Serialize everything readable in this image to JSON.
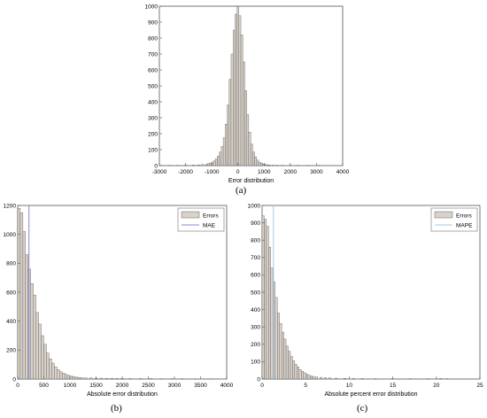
{
  "captions": {
    "a": "(a)",
    "b": "(b)",
    "c": "(c)"
  },
  "colors": {
    "bar_fill": "#d9d2c9",
    "bar_stroke": "#4a4a4a",
    "mae_line": "#8a86d8",
    "mape_line": "#a8c8e8",
    "frame": "#555555"
  },
  "chart_data": [
    {
      "id": "a",
      "type": "bar",
      "title": "",
      "xlabel": "Error distribution",
      "ylabel": "",
      "xlim": [
        -3000,
        4000
      ],
      "ylim": [
        0,
        1000
      ],
      "xticks": [
        -3000,
        -2000,
        -1000,
        0,
        1000,
        2000,
        3000,
        4000
      ],
      "yticks": [
        0,
        100,
        200,
        300,
        400,
        500,
        600,
        700,
        800,
        900,
        1000
      ],
      "grid": false,
      "legend": null,
      "bin_width": 75,
      "x": [
        -2600,
        -2300,
        -2000,
        -1700,
        -1500,
        -1350,
        -1200,
        -1125,
        -1050,
        -975,
        -900,
        -825,
        -750,
        -675,
        -600,
        -525,
        -450,
        -375,
        -300,
        -225,
        -150,
        -75,
        0,
        75,
        150,
        225,
        300,
        375,
        450,
        525,
        600,
        675,
        750,
        825,
        900,
        975,
        1050,
        1125,
        1200,
        1350,
        1500,
        1700,
        2000,
        2300,
        2700,
        3100
      ],
      "values": [
        2,
        2,
        3,
        4,
        5,
        7,
        9,
        12,
        16,
        22,
        30,
        42,
        60,
        85,
        120,
        175,
        260,
        380,
        540,
        700,
        850,
        950,
        1000,
        940,
        820,
        650,
        470,
        320,
        210,
        135,
        85,
        55,
        35,
        22,
        15,
        10,
        7,
        5,
        4,
        3,
        2,
        2,
        2,
        1,
        1,
        1
      ]
    },
    {
      "id": "b",
      "type": "bar",
      "title": "",
      "xlabel": "Absolute error distribution",
      "ylabel": "",
      "xlim": [
        0,
        4000
      ],
      "ylim": [
        0,
        1200
      ],
      "xticks": [
        0,
        500,
        1000,
        1500,
        2000,
        2500,
        3000,
        3500,
        4000
      ],
      "yticks": [
        0,
        200,
        400,
        600,
        800,
        1000,
        1200
      ],
      "grid": false,
      "legend": {
        "position": "top-right",
        "entries": [
          "Errors",
          "MAE"
        ]
      },
      "bin_width": 50,
      "x": [
        25,
        75,
        125,
        175,
        225,
        275,
        325,
        375,
        425,
        475,
        525,
        575,
        625,
        675,
        725,
        775,
        825,
        875,
        925,
        975,
        1025,
        1075,
        1125,
        1175,
        1225,
        1300,
        1400,
        1500,
        1600,
        1700,
        1800,
        1900,
        2000,
        2150,
        2350,
        2550,
        2750,
        2950,
        3150,
        3400,
        3700
      ],
      "values": [
        1180,
        1150,
        1020,
        860,
        760,
        660,
        580,
        460,
        380,
        300,
        240,
        180,
        140,
        110,
        85,
        65,
        50,
        40,
        32,
        25,
        20,
        16,
        13,
        11,
        9,
        8,
        7,
        6,
        6,
        5,
        5,
        4,
        4,
        3,
        3,
        3,
        2,
        2,
        2,
        1,
        1
      ],
      "reference_line": {
        "name": "MAE",
        "x": 215
      }
    },
    {
      "id": "c",
      "type": "bar",
      "title": "",
      "xlabel": "Absolute percent error distribution",
      "ylabel": "",
      "xlim": [
        0,
        25
      ],
      "ylim": [
        0,
        1000
      ],
      "xticks": [
        0,
        5,
        10,
        15,
        20,
        25
      ],
      "yticks": [
        0,
        100,
        200,
        300,
        400,
        500,
        600,
        700,
        800,
        900,
        1000
      ],
      "grid": false,
      "legend": {
        "position": "top-right",
        "entries": [
          "Errors",
          "MAPE"
        ]
      },
      "bin_width": 0.25,
      "x": [
        0.125,
        0.375,
        0.625,
        0.875,
        1.125,
        1.375,
        1.625,
        1.875,
        2.125,
        2.375,
        2.625,
        2.875,
        3.125,
        3.375,
        3.625,
        3.875,
        4.125,
        4.375,
        4.625,
        4.875,
        5.125,
        5.375,
        5.625,
        5.875,
        6.25,
        6.75,
        7.25,
        7.75,
        8.5,
        9.5,
        10.5,
        11.5,
        13,
        15,
        17,
        19,
        20.5,
        21.25
      ],
      "values": [
        940,
        920,
        880,
        760,
        640,
        560,
        470,
        380,
        320,
        270,
        230,
        190,
        160,
        130,
        105,
        85,
        70,
        55,
        45,
        36,
        28,
        22,
        18,
        15,
        12,
        10,
        8,
        7,
        5,
        4,
        3,
        3,
        2,
        2,
        2,
        2,
        3,
        2
      ],
      "reference_line": {
        "name": "MAPE",
        "x": 1.3
      }
    }
  ]
}
